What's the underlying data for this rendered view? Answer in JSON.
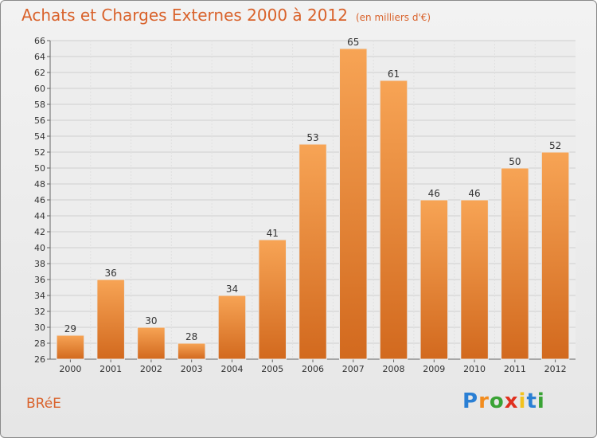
{
  "title": "Achats et Charges Externes 2000 à 2012",
  "subtitle": "(en milliers d'€)",
  "commune": "BRéE",
  "logo": {
    "letters": [
      "P",
      "r",
      "o",
      "x",
      "i",
      "t",
      "i"
    ],
    "colors": [
      "#2a7fd4",
      "#f28c1e",
      "#3aa335",
      "#e0301e",
      "#f2c21e",
      "#2a7fd4",
      "#3aa335"
    ]
  },
  "colors": {
    "accent": "#d9622b",
    "bar_top": "#f7a455",
    "bar_bottom": "#d2691e"
  },
  "chart_data": {
    "type": "bar",
    "categories": [
      "2000",
      "2001",
      "2002",
      "2003",
      "2004",
      "2005",
      "2006",
      "2007",
      "2008",
      "2009",
      "2010",
      "2011",
      "2012"
    ],
    "values": [
      29,
      36,
      30,
      28,
      34,
      41,
      53,
      65,
      61,
      46,
      46,
      50,
      52
    ],
    "data_labels": [
      "29",
      "36",
      "30",
      "28",
      "34",
      "41",
      "53",
      "65",
      "61",
      "46",
      "46",
      "50",
      "52"
    ],
    "ylim": [
      26,
      66
    ],
    "ytick_step": 2,
    "grid": true,
    "xlabel": "",
    "ylabel": ""
  }
}
